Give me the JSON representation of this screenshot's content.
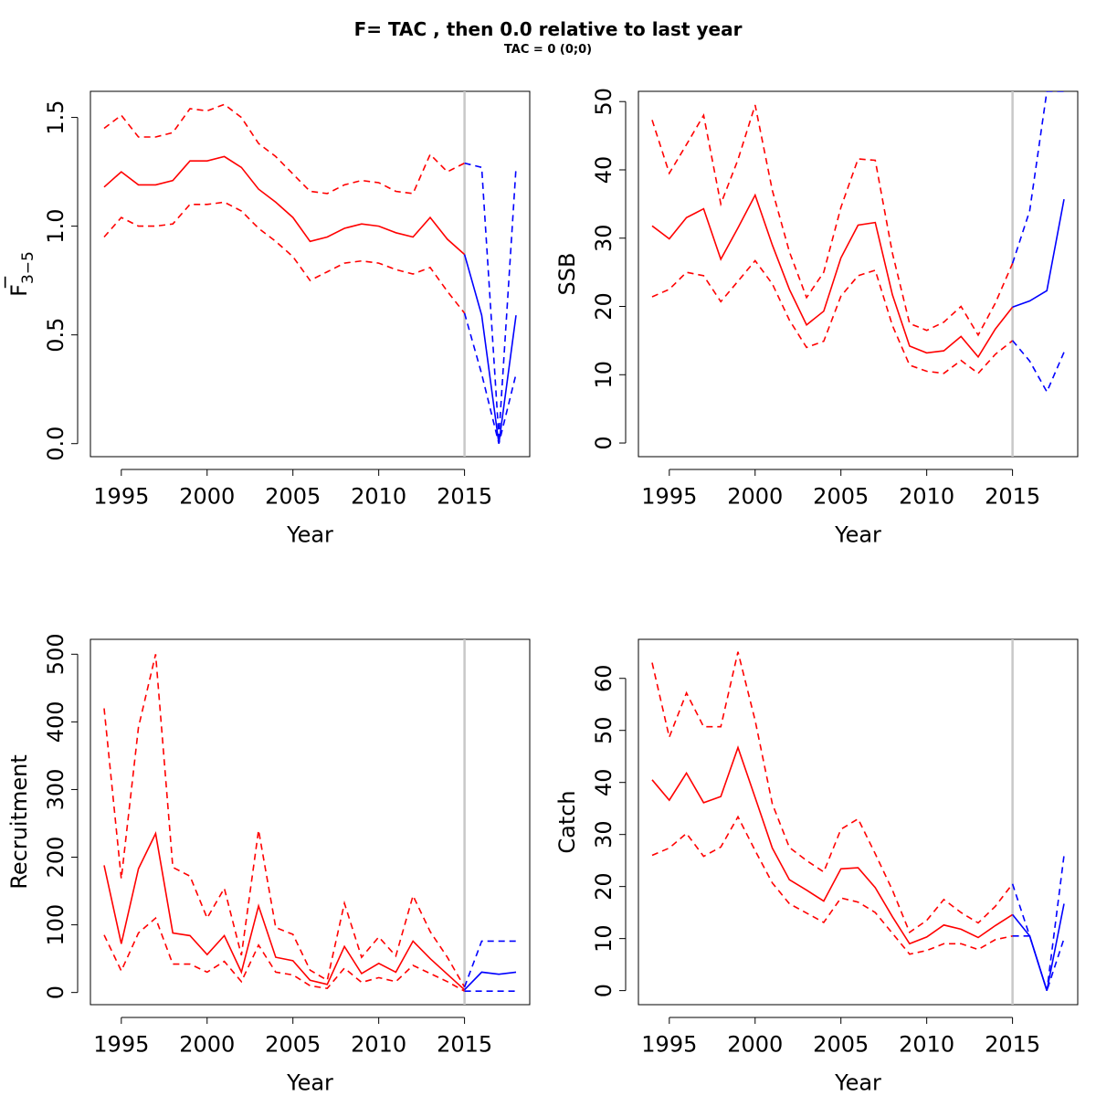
{
  "title": "F= TAC , then 0.0  relative to last year",
  "subtitle": "TAC = 0 (0;0)",
  "colors": {
    "historical": "#ff0000",
    "forecast": "#0000ff",
    "refline": "#c8c8c8"
  },
  "chart_data": [
    {
      "type": "line",
      "xlabel": "Year",
      "ylabel": "F",
      "ylabel_bar": "_",
      "ylabel_sub": "3−5",
      "xlim": [
        1993.2,
        2018.8
      ],
      "ylim": [
        -0.06,
        1.62
      ],
      "xticks": [
        "1995",
        "2000",
        "2005",
        "2010",
        "2015"
      ],
      "yticks": [
        "0.0",
        "0.5",
        "1.0",
        "1.5"
      ],
      "vline": 2015,
      "historical": {
        "x": [
          1994,
          1995,
          1996,
          1997,
          1998,
          1999,
          2000,
          2001,
          2002,
          2003,
          2004,
          2005,
          2006,
          2007,
          2008,
          2009,
          2010,
          2011,
          2012,
          2013,
          2014,
          2015
        ],
        "median": [
          1.18,
          1.25,
          1.19,
          1.19,
          1.21,
          1.3,
          1.3,
          1.32,
          1.27,
          1.17,
          1.11,
          1.04,
          0.93,
          0.95,
          0.99,
          1.01,
          1.0,
          0.97,
          0.95,
          1.04,
          0.94,
          0.87
        ],
        "lower": [
          0.95,
          1.04,
          1.0,
          1.0,
          1.01,
          1.1,
          1.1,
          1.11,
          1.07,
          0.99,
          0.93,
          0.86,
          0.75,
          0.79,
          0.83,
          0.84,
          0.83,
          0.8,
          0.78,
          0.81,
          0.7,
          0.6
        ],
        "upper": [
          1.45,
          1.51,
          1.41,
          1.41,
          1.43,
          1.54,
          1.53,
          1.56,
          1.5,
          1.38,
          1.32,
          1.24,
          1.16,
          1.15,
          1.19,
          1.21,
          1.2,
          1.16,
          1.15,
          1.33,
          1.25,
          1.29
        ]
      },
      "forecast": {
        "x": [
          2015,
          2016,
          2017,
          2018
        ],
        "median": [
          0.87,
          0.59,
          0.0,
          0.59
        ],
        "lower": [
          0.6,
          0.32,
          0.0,
          0.32
        ],
        "upper": [
          1.29,
          1.27,
          0.03,
          1.27
        ]
      }
    },
    {
      "type": "line",
      "xlabel": "Year",
      "ylabel": "SSB",
      "xlim": [
        1993.2,
        2018.8
      ],
      "ylim": [
        -2,
        51.5
      ],
      "xticks": [
        "1995",
        "2000",
        "2005",
        "2010",
        "2015"
      ],
      "yticks": [
        "0",
        "10",
        "20",
        "30",
        "40",
        "50"
      ],
      "vline": 2015,
      "historical": {
        "x": [
          1994,
          1995,
          1996,
          1997,
          1998,
          1999,
          2000,
          2001,
          2002,
          2003,
          2004,
          2005,
          2006,
          2007,
          2008,
          2009,
          2010,
          2011,
          2012,
          2013,
          2014,
          2015
        ],
        "median": [
          31.8,
          29.9,
          33.0,
          34.3,
          26.9,
          31.5,
          36.3,
          29.0,
          22.5,
          17.3,
          19.3,
          27.1,
          31.9,
          32.3,
          21.7,
          14.2,
          13.2,
          13.5,
          15.6,
          12.6,
          16.7,
          19.9
        ],
        "lower": [
          21.4,
          22.5,
          25.0,
          24.5,
          20.7,
          23.7,
          26.7,
          23.3,
          18.0,
          14.0,
          14.9,
          21.5,
          24.5,
          25.3,
          17.2,
          11.4,
          10.5,
          10.2,
          12.1,
          10.2,
          13.0,
          15.0
        ],
        "upper": [
          47.3,
          39.5,
          43.7,
          48.0,
          35.0,
          41.5,
          49.5,
          37.0,
          28.0,
          21.3,
          25.0,
          34.5,
          41.6,
          41.4,
          27.8,
          17.5,
          16.5,
          17.7,
          20.0,
          15.8,
          20.5,
          26.3
        ]
      },
      "forecast": {
        "x": [
          2015,
          2016,
          2017,
          2018
        ],
        "median": [
          19.9,
          20.8,
          22.3,
          35.7
        ],
        "lower": [
          15.0,
          12.0,
          7.5,
          13.3
        ],
        "upper": [
          26.3,
          34.0,
          51.5,
          51.5
        ]
      }
    },
    {
      "type": "line",
      "xlabel": "Year",
      "ylabel": "Recruitment",
      "xlim": [
        1993.2,
        2018.8
      ],
      "ylim": [
        -18,
        522
      ],
      "xticks": [
        "1995",
        "2000",
        "2005",
        "2010",
        "2015"
      ],
      "yticks": [
        "0",
        "100",
        "200",
        "300",
        "400",
        "500"
      ],
      "vline": 2015,
      "historical": {
        "x": [
          1994,
          1995,
          1996,
          1997,
          1998,
          1999,
          2000,
          2001,
          2002,
          2003,
          2004,
          2005,
          2006,
          2007,
          2008,
          2009,
          2010,
          2011,
          2012,
          2013,
          2014,
          2015
        ],
        "median": [
          188,
          72,
          183,
          235,
          88,
          84,
          56,
          84,
          30,
          128,
          52,
          47,
          18,
          12,
          68,
          28,
          43,
          30,
          76,
          50,
          27,
          4
        ],
        "lower": [
          85,
          32,
          88,
          110,
          42,
          42,
          30,
          46,
          16,
          70,
          30,
          26,
          10,
          6,
          36,
          15,
          22,
          16,
          40,
          28,
          16,
          2
        ],
        "upper": [
          420,
          168,
          392,
          500,
          185,
          172,
          110,
          154,
          55,
          240,
          96,
          86,
          33,
          18,
          132,
          52,
          82,
          54,
          143,
          90,
          52,
          8
        ]
      },
      "forecast": {
        "x": [
          2015,
          2016,
          2017,
          2018
        ],
        "median": [
          4,
          30,
          27,
          30
        ],
        "lower": [
          2,
          2,
          2,
          2
        ],
        "upper": [
          8,
          76,
          76,
          76
        ]
      }
    },
    {
      "type": "line",
      "xlabel": "Year",
      "ylabel": "Catch",
      "xlim": [
        1993.2,
        2018.8
      ],
      "ylim": [
        -2.7,
        67.5
      ],
      "xticks": [
        "1995",
        "2000",
        "2005",
        "2010",
        "2015"
      ],
      "yticks": [
        "0",
        "10",
        "20",
        "30",
        "40",
        "50",
        "60"
      ],
      "vline": 2015,
      "historical": {
        "x": [
          1994,
          1995,
          1996,
          1997,
          1998,
          1999,
          2000,
          2001,
          2002,
          2003,
          2004,
          2005,
          2006,
          2007,
          2008,
          2009,
          2010,
          2011,
          2012,
          2013,
          2014,
          2015
        ],
        "median": [
          40.5,
          36.6,
          41.8,
          36.1,
          37.3,
          46.7,
          37.1,
          27.4,
          21.3,
          19.3,
          17.2,
          23.4,
          23.6,
          19.8,
          14.2,
          9.0,
          10.3,
          12.6,
          11.8,
          10.2,
          12.5,
          14.6
        ],
        "lower": [
          26.0,
          27.4,
          30.2,
          25.8,
          27.6,
          33.4,
          26.9,
          20.7,
          16.7,
          14.9,
          13.1,
          17.8,
          17.0,
          15.0,
          11.0,
          7.0,
          7.7,
          9.0,
          9.0,
          7.9,
          9.8,
          10.5
        ],
        "upper": [
          63.0,
          48.7,
          57.2,
          50.7,
          50.7,
          65.1,
          51.9,
          35.9,
          27.5,
          25.0,
          22.8,
          31.0,
          33.0,
          26.3,
          19.3,
          11.2,
          13.5,
          17.5,
          15.0,
          13.0,
          16.2,
          20.5
        ]
      },
      "forecast": {
        "x": [
          2015,
          2016,
          2017,
          2018
        ],
        "median": [
          14.6,
          10.5,
          0.0,
          16.7
        ],
        "lower": [
          10.5,
          10.5,
          0.0,
          10.0
        ],
        "upper": [
          20.5,
          10.5,
          0.0,
          26.0
        ]
      }
    }
  ]
}
